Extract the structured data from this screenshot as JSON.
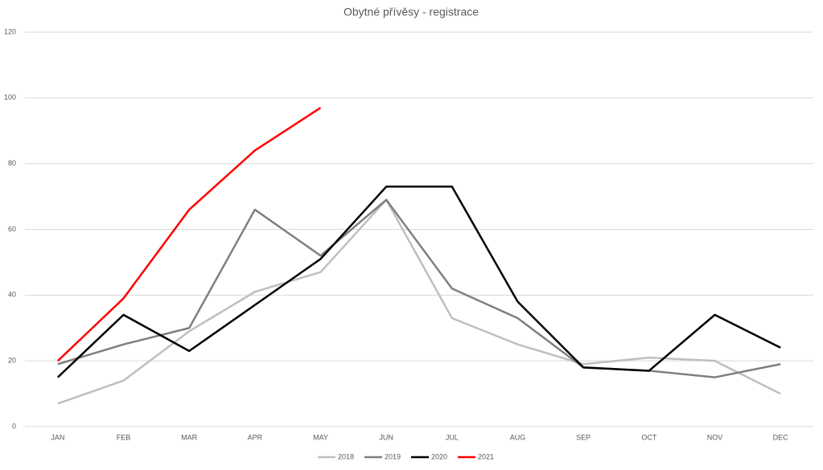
{
  "chart_data": {
    "type": "line",
    "title": "Obytné přívěsy - registrace",
    "categories": [
      "JAN",
      "FEB",
      "MAR",
      "APR",
      "MAY",
      "JUN",
      "JUL",
      "AUG",
      "SEP",
      "OCT",
      "NOV",
      "DEC"
    ],
    "series": [
      {
        "name": "2018",
        "color": "#bfbfbf",
        "values": [
          7,
          14,
          29,
          41,
          47,
          69,
          33,
          25,
          19,
          21,
          20,
          10
        ]
      },
      {
        "name": "2019",
        "color": "#7f7f7f",
        "values": [
          19,
          25,
          30,
          66,
          52,
          69,
          42,
          33,
          18,
          17,
          15,
          19
        ]
      },
      {
        "name": "2020",
        "color": "#000000",
        "values": [
          15,
          34,
          23,
          37,
          51,
          73,
          73,
          38,
          18,
          17,
          34,
          24
        ]
      },
      {
        "name": "2021",
        "color": "#ff0000",
        "values": [
          20,
          39,
          66,
          84,
          97,
          null,
          null,
          null,
          null,
          null,
          null,
          null
        ]
      }
    ],
    "ylim": [
      0,
      120
    ],
    "yticks": [
      0,
      20,
      40,
      60,
      80,
      100,
      120
    ],
    "grid": true,
    "legend": "bottom"
  }
}
